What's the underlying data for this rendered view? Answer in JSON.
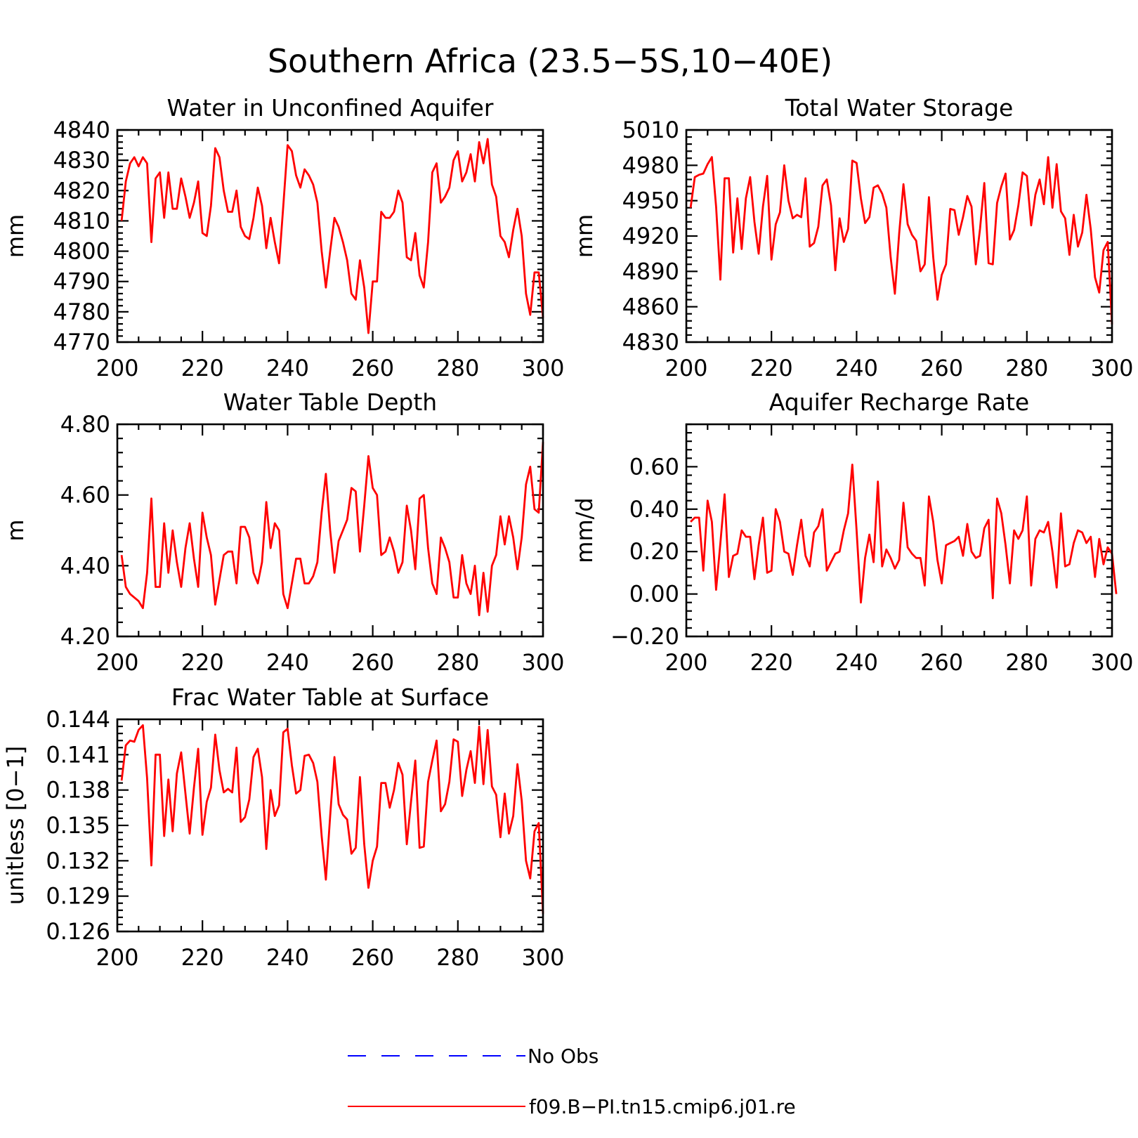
{
  "figure": {
    "title": "Southern Africa (23.5−5S,10−40E)"
  },
  "legend": [
    {
      "label": "No Obs",
      "color": "#0000ff",
      "dash": "dashed"
    },
    {
      "label": "f09.B−PI.tn15.cmip6.j01.re",
      "color": "#ff0000",
      "dash": "solid"
    }
  ],
  "chart_data": [
    {
      "type": "line",
      "title": "Water in Unconfined Aquifer",
      "ylabel": "mm",
      "xlim": [
        200,
        300
      ],
      "ylim": [
        4770,
        4840
      ],
      "xticks": [
        200,
        220,
        240,
        260,
        280,
        300
      ],
      "yticks": [
        4770,
        4780,
        4790,
        4800,
        4810,
        4820,
        4830,
        4840
      ],
      "ytick_labels": [
        "4770",
        "4780",
        "4790",
        "4800",
        "4810",
        "4820",
        "4830",
        "4840"
      ],
      "x_start": 201,
      "series": [
        {
          "name": "f09.B−PI.tn15.cmip6.j01.re",
          "color": "#ff0000",
          "values": [
            4810,
            4823,
            4829,
            4831,
            4828,
            4831,
            4829,
            4803,
            4824,
            4826,
            4811,
            4826,
            4814,
            4814,
            4824,
            4818,
            4811,
            4816,
            4823,
            4806,
            4805,
            4815,
            4834,
            4831,
            4820,
            4813,
            4813,
            4820,
            4808,
            4805,
            4804,
            4811,
            4821,
            4815,
            4801,
            4811,
            4803,
            4796,
            4815,
            4835,
            4833,
            4825,
            4821,
            4827,
            4825,
            4822,
            4816,
            4800,
            4788,
            4800,
            4811,
            4808,
            4803,
            4797,
            4786,
            4784,
            4797,
            4788,
            4773,
            4790,
            4790,
            4813,
            4811,
            4811,
            4813,
            4820,
            4816,
            4798,
            4797,
            4806,
            4792,
            4788,
            4803,
            4826,
            4829,
            4816,
            4818,
            4821,
            4830,
            4833,
            4823,
            4826,
            4832,
            4823,
            4836,
            4829,
            4837,
            4822,
            4818,
            4805,
            4803,
            4798,
            4807,
            4814,
            4805,
            4786,
            4779,
            4793,
            4793,
            4778
          ]
        }
      ]
    },
    {
      "type": "line",
      "title": "Total Water Storage",
      "ylabel": "mm",
      "xlim": [
        200,
        300
      ],
      "ylim": [
        4830,
        5010
      ],
      "xticks": [
        200,
        220,
        240,
        260,
        280,
        300
      ],
      "yticks": [
        4830,
        4860,
        4890,
        4920,
        4950,
        4980,
        5010
      ],
      "ytick_labels": [
        "4830",
        "4860",
        "4890",
        "4920",
        "4950",
        "4980",
        "5010"
      ],
      "x_start": 201,
      "series": [
        {
          "name": "f09.B−PI.tn15.cmip6.j01.re",
          "color": "#ff0000",
          "values": [
            4944,
            4970,
            4972,
            4973,
            4981,
            4987,
            4945,
            4883,
            4969,
            4969,
            4906,
            4952,
            4909,
            4952,
            4970,
            4932,
            4905,
            4945,
            4971,
            4900,
            4930,
            4940,
            4980,
            4950,
            4935,
            4938,
            4936,
            4969,
            4911,
            4914,
            4928,
            4963,
            4968,
            4946,
            4891,
            4935,
            4915,
            4926,
            4984,
            4982,
            4952,
            4931,
            4936,
            4961,
            4963,
            4956,
            4944,
            4902,
            4871,
            4922,
            4964,
            4930,
            4921,
            4916,
            4890,
            4896,
            4953,
            4902,
            4866,
            4887,
            4896,
            4943,
            4942,
            4921,
            4936,
            4954,
            4945,
            4896,
            4926,
            4965,
            4897,
            4896,
            4948,
            4962,
            4973,
            4917,
            4925,
            4946,
            4974,
            4971,
            4929,
            4955,
            4968,
            4947,
            4987,
            4944,
            4981,
            4941,
            4935,
            4904,
            4938,
            4911,
            4923,
            4955,
            4926,
            4885,
            4872,
            4908,
            4915,
            4845
          ]
        }
      ]
    },
    {
      "type": "line",
      "title": "Water Table Depth",
      "ylabel": "m",
      "xlim": [
        200,
        300
      ],
      "ylim": [
        4.2,
        4.8
      ],
      "xticks": [
        200,
        220,
        240,
        260,
        280,
        300
      ],
      "yticks": [
        4.2,
        4.4,
        4.6,
        4.8
      ],
      "ytick_labels": [
        "4.20",
        "4.40",
        "4.60",
        "4.80"
      ],
      "x_start": 201,
      "series": [
        {
          "name": "f09.B−PI.tn15.cmip6.j01.re",
          "color": "#ff0000",
          "values": [
            4.43,
            4.34,
            4.32,
            4.31,
            4.3,
            4.28,
            4.38,
            4.59,
            4.34,
            4.34,
            4.52,
            4.38,
            4.5,
            4.41,
            4.34,
            4.45,
            4.52,
            4.42,
            4.34,
            4.55,
            4.48,
            4.43,
            4.29,
            4.36,
            4.43,
            4.44,
            4.44,
            4.35,
            4.51,
            4.51,
            4.48,
            4.38,
            4.35,
            4.41,
            4.58,
            4.45,
            4.52,
            4.5,
            4.32,
            4.28,
            4.35,
            4.42,
            4.42,
            4.35,
            4.35,
            4.37,
            4.41,
            4.55,
            4.66,
            4.5,
            4.38,
            4.47,
            4.5,
            4.53,
            4.62,
            4.61,
            4.44,
            4.57,
            4.71,
            4.62,
            4.6,
            4.43,
            4.44,
            4.48,
            4.44,
            4.38,
            4.41,
            4.57,
            4.5,
            4.39,
            4.59,
            4.6,
            4.45,
            4.35,
            4.32,
            4.48,
            4.45,
            4.41,
            4.31,
            4.31,
            4.43,
            4.35,
            4.32,
            4.4,
            4.26,
            4.38,
            4.27,
            4.4,
            4.43,
            4.54,
            4.46,
            4.54,
            4.48,
            4.39,
            4.48,
            4.63,
            4.68,
            4.56,
            4.55,
            4.75
          ]
        }
      ]
    },
    {
      "type": "line",
      "title": "Aquifer Recharge Rate",
      "ylabel": "mm/d",
      "xlim": [
        200,
        300
      ],
      "ylim": [
        -0.2,
        0.8
      ],
      "xticks": [
        200,
        220,
        240,
        260,
        280,
        300
      ],
      "yticks": [
        -0.2,
        0.0,
        0.2,
        0.4,
        0.6
      ],
      "ytick_labels": [
        "−0.20",
        "0.00",
        "0.20",
        "0.40",
        "0.60"
      ],
      "x_start": 201,
      "series": [
        {
          "name": "f09.B−PI.tn15.cmip6.j01.re",
          "color": "#ff0000",
          "values": [
            0.34,
            0.36,
            0.36,
            0.11,
            0.44,
            0.34,
            0.02,
            0.24,
            0.47,
            0.08,
            0.18,
            0.19,
            0.3,
            0.27,
            0.27,
            0.07,
            0.23,
            0.36,
            0.1,
            0.11,
            0.4,
            0.34,
            0.2,
            0.19,
            0.09,
            0.23,
            0.35,
            0.18,
            0.13,
            0.29,
            0.32,
            0.4,
            0.11,
            0.15,
            0.19,
            0.2,
            0.3,
            0.38,
            0.61,
            0.3,
            -0.04,
            0.17,
            0.28,
            0.15,
            0.53,
            0.13,
            0.21,
            0.17,
            0.12,
            0.16,
            0.43,
            0.22,
            0.19,
            0.17,
            0.17,
            0.04,
            0.46,
            0.34,
            0.16,
            0.05,
            0.23,
            0.24,
            0.25,
            0.27,
            0.18,
            0.33,
            0.2,
            0.17,
            0.18,
            0.31,
            0.35,
            -0.02,
            0.45,
            0.38,
            0.23,
            0.05,
            0.3,
            0.26,
            0.3,
            0.46,
            0.04,
            0.26,
            0.3,
            0.29,
            0.34,
            0.2,
            0.03,
            0.38,
            0.13,
            0.14,
            0.24,
            0.3,
            0.29,
            0.24,
            0.27,
            0.08,
            0.26,
            0.14,
            0.22,
            0.19,
            0.0
          ]
        }
      ]
    },
    {
      "type": "line",
      "title": "Frac Water Table at Surface",
      "ylabel": "unitless [0−1]",
      "xlim": [
        200,
        300
      ],
      "ylim": [
        0.126,
        0.144
      ],
      "xticks": [
        200,
        220,
        240,
        260,
        280,
        300
      ],
      "yticks": [
        0.126,
        0.129,
        0.132,
        0.135,
        0.138,
        0.141,
        0.144
      ],
      "ytick_labels": [
        "0.126",
        "0.129",
        "0.132",
        "0.135",
        "0.138",
        "0.141",
        "0.144"
      ],
      "x_start": 201,
      "series": [
        {
          "name": "f09.B−PI.tn15.cmip6.j01.re",
          "color": "#ff0000",
          "values": [
            0.1388,
            0.1418,
            0.1422,
            0.1421,
            0.1431,
            0.1435,
            0.139,
            0.1316,
            0.141,
            0.141,
            0.1341,
            0.1389,
            0.1345,
            0.1394,
            0.1412,
            0.1377,
            0.1343,
            0.1382,
            0.1415,
            0.1342,
            0.137,
            0.1382,
            0.1427,
            0.1397,
            0.1378,
            0.1381,
            0.1378,
            0.1416,
            0.1353,
            0.1357,
            0.1372,
            0.1408,
            0.1415,
            0.1391,
            0.133,
            0.138,
            0.1358,
            0.1367,
            0.1429,
            0.1432,
            0.1401,
            0.1377,
            0.138,
            0.1409,
            0.141,
            0.1403,
            0.1387,
            0.1341,
            0.1304,
            0.1358,
            0.1408,
            0.1368,
            0.1359,
            0.1355,
            0.1326,
            0.1331,
            0.1391,
            0.1334,
            0.1297,
            0.132,
            0.1332,
            0.1386,
            0.1386,
            0.1365,
            0.138,
            0.1403,
            0.1393,
            0.1334,
            0.137,
            0.1405,
            0.1331,
            0.1332,
            0.1387,
            0.1405,
            0.1422,
            0.1362,
            0.1368,
            0.1387,
            0.1423,
            0.1421,
            0.1375,
            0.1397,
            0.1413,
            0.1386,
            0.1434,
            0.1385,
            0.1431,
            0.1383,
            0.1376,
            0.134,
            0.1377,
            0.1343,
            0.1358,
            0.1402,
            0.1371,
            0.132,
            0.1305,
            0.1345,
            0.1352,
            0.1275
          ]
        }
      ]
    }
  ]
}
